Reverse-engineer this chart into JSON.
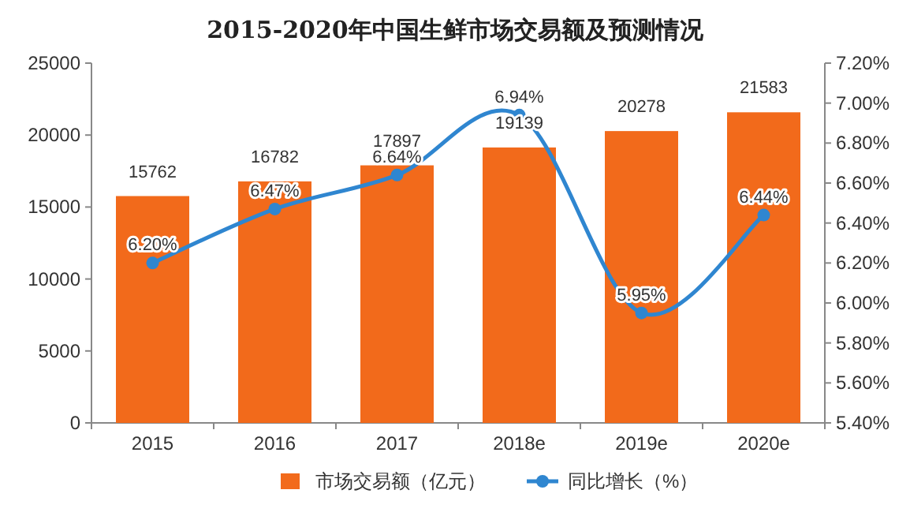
{
  "chart_data": {
    "type": "bar",
    "title": "2015-2020年中国生鲜市场交易额及预测情况",
    "categories": [
      "2015",
      "2016",
      "2017",
      "2018e",
      "2019e",
      "2020e"
    ],
    "series": [
      {
        "name": "市场交易额（亿元）",
        "color": "#f26a1b",
        "values": [
          15762,
          16782,
          17897,
          19139,
          20278,
          21583
        ],
        "value_labels": [
          "15762",
          "16782",
          "17897",
          "19139",
          "20278",
          "21583"
        ]
      },
      {
        "name": "同比增长（%）",
        "type": "line",
        "axis": "y2",
        "marker": "circle",
        "color": "#2f86d0",
        "values": [
          6.2,
          6.47,
          6.64,
          6.94,
          5.95,
          6.44
        ],
        "value_labels": [
          "6.20%",
          "6.47%",
          "6.64%",
          "6.94%",
          "5.95%",
          "6.44%"
        ]
      }
    ],
    "ylim": [
      0,
      25000
    ],
    "yticks": [
      0,
      5000,
      10000,
      15000,
      20000,
      25000
    ],
    "y2lim": [
      5.4,
      7.2
    ],
    "y2ticks": [
      {
        "value": 5.4,
        "label": "5.40%"
      },
      {
        "value": 5.6,
        "label": "5.60%"
      },
      {
        "value": 5.8,
        "label": "5.80%"
      },
      {
        "value": 6.0,
        "label": "6.00%"
      },
      {
        "value": 6.2,
        "label": "6.20%"
      },
      {
        "value": 6.4,
        "label": "6.40%"
      },
      {
        "value": 6.6,
        "label": "6.60%"
      },
      {
        "value": 6.8,
        "label": "6.80%"
      },
      {
        "value": 7.0,
        "label": "7.00%"
      },
      {
        "value": 7.2,
        "label": "7.20%"
      }
    ],
    "legend": "bottom"
  }
}
